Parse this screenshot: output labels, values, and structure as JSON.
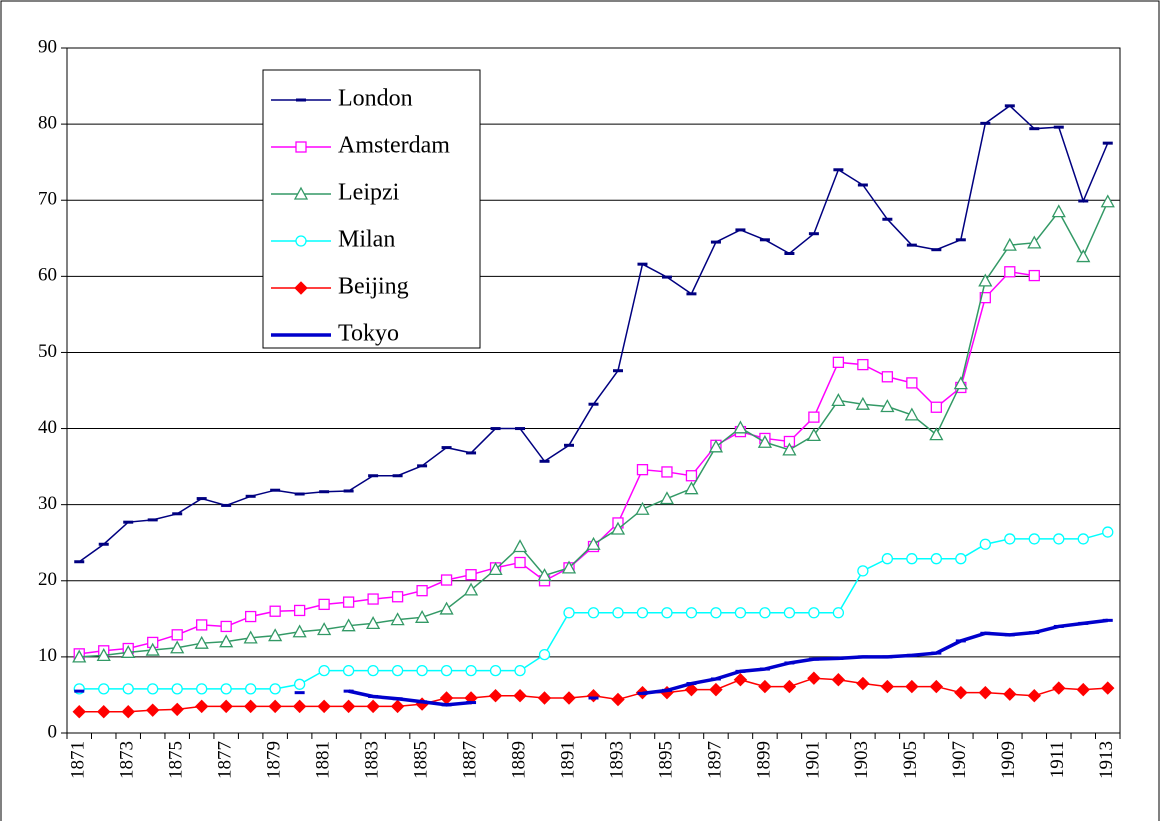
{
  "chart_data": {
    "type": "line",
    "categories": [
      "1871",
      null,
      "1873",
      null,
      "1875",
      null,
      "1877",
      null,
      "1879",
      null,
      "1881",
      null,
      "1883",
      null,
      "1885",
      null,
      "1887",
      null,
      "1889",
      null,
      "1891",
      null,
      "1893",
      null,
      "1895",
      null,
      "1897",
      null,
      "1899",
      null,
      "1901",
      null,
      "1903",
      null,
      "1905",
      null,
      "1907",
      null,
      "1909",
      null,
      "1911",
      null,
      "1913"
    ],
    "ylim": [
      0,
      90
    ],
    "yticks": [
      0,
      10,
      20,
      30,
      40,
      50,
      60,
      70,
      80,
      90
    ],
    "grid": true,
    "legend": "upper left",
    "series": [
      {
        "name": "London",
        "color": "#000080",
        "marker": "dash",
        "values": [
          22.5,
          24.8,
          27.7,
          28,
          28.8,
          30.8,
          29.9,
          31.1,
          31.9,
          31.4,
          31.7,
          31.8,
          33.8,
          33.8,
          35.1,
          37.5,
          36.8,
          40,
          40,
          35.7,
          37.8,
          43.2,
          47.6,
          61.6,
          59.9,
          57.7,
          64.5,
          66.1,
          64.8,
          63,
          65.6,
          74,
          72,
          67.5,
          64.1,
          63.5,
          64.8,
          80.1,
          82.4,
          79.4,
          79.6,
          69.9,
          77.5
        ]
      },
      {
        "name": "Amsterdam",
        "color": "#ff00ff",
        "marker": "square",
        "values": [
          10.4,
          10.8,
          11.1,
          11.9,
          12.9,
          14.2,
          14,
          15.3,
          16,
          16.1,
          16.9,
          17.2,
          17.6,
          17.9,
          18.7,
          20.1,
          20.8,
          21.7,
          22.4,
          20,
          21.7,
          24.5,
          27.6,
          34.6,
          34.3,
          33.8,
          37.8,
          39.6,
          38.7,
          38.3,
          41.5,
          48.7,
          48.4,
          46.8,
          46,
          42.8,
          45.4,
          57.2,
          60.6,
          60.1,
          null,
          null,
          null
        ]
      },
      {
        "name": "Leipzi",
        "color": "#339966",
        "marker": "triangle",
        "values": [
          10,
          10.2,
          10.6,
          10.9,
          11.2,
          11.8,
          12,
          12.5,
          12.8,
          13.3,
          13.6,
          14.1,
          14.4,
          14.9,
          15.2,
          16.3,
          18.8,
          21.5,
          24.5,
          20.7,
          21.7,
          24.8,
          26.8,
          29.4,
          30.8,
          32.1,
          37.6,
          40.1,
          38.2,
          37.2,
          39.1,
          43.7,
          43.2,
          42.9,
          41.8,
          39.2,
          45.9,
          59.4,
          64.1,
          64.4,
          68.5,
          62.6,
          69.8
        ]
      },
      {
        "name": "Milan",
        "color": "#00ffff",
        "marker": "circle",
        "values": [
          5.8,
          5.8,
          5.8,
          5.8,
          5.8,
          5.8,
          5.8,
          5.8,
          5.8,
          6.4,
          8.2,
          8.2,
          8.2,
          8.2,
          8.2,
          8.2,
          8.2,
          8.2,
          8.2,
          10.3,
          15.8,
          15.8,
          15.8,
          15.8,
          15.8,
          15.8,
          15.8,
          15.8,
          15.8,
          15.8,
          15.8,
          15.8,
          21.3,
          22.9,
          22.9,
          22.9,
          22.9,
          24.8,
          25.5,
          25.5,
          25.5,
          25.5,
          26.4
        ]
      },
      {
        "name": "Beijing",
        "color": "#ff0000",
        "marker": "diamond",
        "values": [
          2.8,
          2.8,
          2.8,
          3,
          3.1,
          3.5,
          3.5,
          3.5,
          3.5,
          3.5,
          3.5,
          3.5,
          3.5,
          3.5,
          3.8,
          4.6,
          4.6,
          4.9,
          4.9,
          4.6,
          4.6,
          4.9,
          4.4,
          5.3,
          5.3,
          5.7,
          5.7,
          7,
          6.1,
          6.1,
          7.2,
          7,
          6.5,
          6.1,
          6.1,
          6.1,
          5.3,
          5.3,
          5.1,
          4.9,
          5.9,
          5.7,
          5.9
        ]
      },
      {
        "name": "Tokyo",
        "color": "#0000cc",
        "marker": "dash",
        "thick": true,
        "values": [
          5.5,
          null,
          null,
          null,
          null,
          null,
          null,
          null,
          null,
          5.3,
          null,
          5.5,
          4.8,
          4.5,
          4.1,
          3.7,
          4,
          null,
          null,
          null,
          null,
          4.6,
          null,
          5.2,
          5.6,
          6.5,
          7.1,
          8.1,
          8.4,
          9.2,
          9.7,
          9.8,
          10,
          10,
          10.2,
          10.5,
          12.1,
          13.1,
          12.9,
          13.2,
          14,
          14.4,
          14.8
        ]
      }
    ]
  }
}
